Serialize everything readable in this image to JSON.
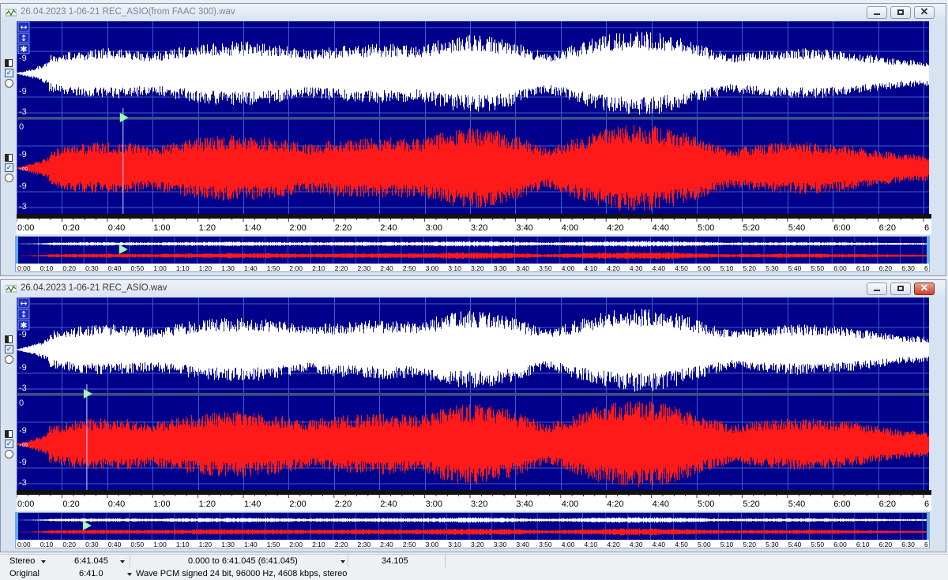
{
  "windows": [
    {
      "title": "26.04.2023 1-06-21 REC_ASIO(from FAAC 300).wav",
      "active": false,
      "cursor_time": "0:47",
      "overview_cursor": "0:47"
    },
    {
      "title": "26.04.2023 1-06-21 REC_ASIO.wav",
      "active": true,
      "cursor_time": "0:31",
      "overview_cursor": "0:31"
    }
  ],
  "channel_scale_labels": [
    "-9",
    "-∞",
    "-9",
    "-3",
    "0",
    "-9",
    "-∞",
    "-9",
    "-3"
  ],
  "timeline_labels": [
    "0:00",
    "0:20",
    "0:40",
    "1:00",
    "1:20",
    "1:40",
    "2:00",
    "2:20",
    "2:40",
    "3:00",
    "3:20",
    "3:40",
    "4:00",
    "4:20",
    "4:40",
    "5:00",
    "5:20",
    "5:40",
    "6:00",
    "6:20",
    "6"
  ],
  "overview_labels": [
    "0:00",
    "0:10",
    "0:20",
    "0:30",
    "0:40",
    "0:50",
    "1:00",
    "1:10",
    "1:20",
    "1:30",
    "1:40",
    "1:50",
    "2:00",
    "2:10",
    "2:20",
    "2:30",
    "2:40",
    "2:50",
    "3:00",
    "3:10",
    "3:20",
    "3:30",
    "3:40",
    "3:50",
    "4:00",
    "4:10",
    "4:20",
    "4:30",
    "4:40",
    "4:50",
    "5:00",
    "5:10",
    "5:20",
    "5:30",
    "5:40",
    "5:50",
    "6:00",
    "6:10",
    "6:20",
    "6:30",
    "6"
  ],
  "colors": {
    "wave_bg": "#00008c",
    "left_channel": "#ffffff",
    "right_channel": "#ff1a1a",
    "grid": "#3b5fc8",
    "cursor": "#9fffb0"
  },
  "icons": {
    "zoom_h": "horizontal-arrows-icon",
    "zoom_v": "vertical-arrows-icon",
    "pin": "anchor-icon"
  },
  "status": {
    "row1": {
      "mode": "Stereo",
      "length": "6:41.045",
      "selection": "0.000 to 6:41.045 (6:41.045)",
      "value": "34.105"
    },
    "row2": {
      "label": "Original",
      "length": "6:41.0",
      "format": "Wave PCM signed 24 bit, 96000 Hz, 4608 kbps, stereo"
    }
  }
}
